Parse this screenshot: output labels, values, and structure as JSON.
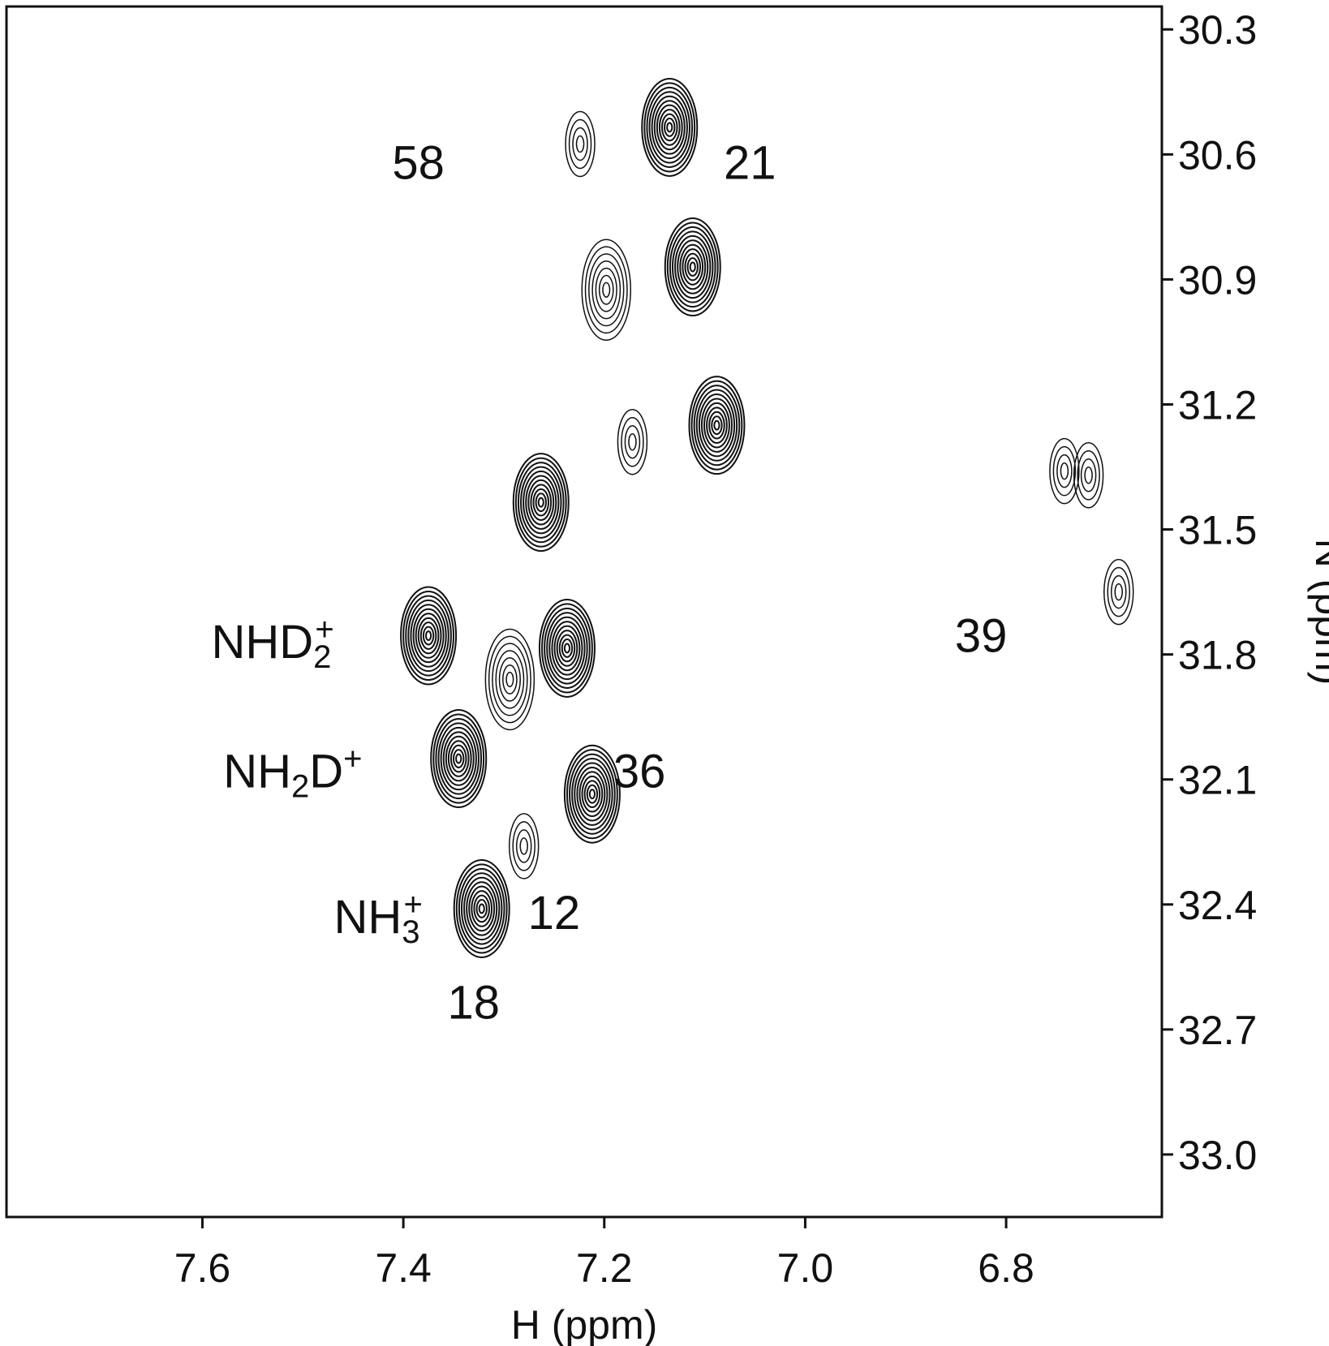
{
  "chart_data": {
    "type": "scatter",
    "subtype": "2D NMR contour spectrum (1H-15N HSQC)",
    "title": "",
    "xlabel": "H (ppm)",
    "ylabel": "N (ppm)",
    "x_axis": {
      "reversed": true,
      "ticks": [
        "7.6",
        "7.4",
        "7.2",
        "7.0",
        "6.8"
      ]
    },
    "y_axis": {
      "position": "right",
      "reversed": true,
      "ticks": [
        "30.3",
        "30.6",
        "30.9",
        "31.2",
        "31.5",
        "31.8",
        "32.1",
        "32.4",
        "32.7",
        "33.0"
      ]
    },
    "xlim": [
      7.795,
      6.645
    ],
    "ylim": [
      30.245,
      33.15
    ],
    "grid": false,
    "legend": "none",
    "contour_color": "#111111",
    "peaks": [
      {
        "x": 7.224,
        "y": 30.575,
        "intensity": "weak"
      },
      {
        "x": 7.135,
        "y": 30.535,
        "intensity": "strong"
      },
      {
        "x": 7.198,
        "y": 30.925,
        "intensity": "medium"
      },
      {
        "x": 7.112,
        "y": 30.87,
        "intensity": "strong"
      },
      {
        "x": 7.172,
        "y": 31.29,
        "intensity": "weak"
      },
      {
        "x": 7.088,
        "y": 31.25,
        "intensity": "strong"
      },
      {
        "x": 7.263,
        "y": 31.435,
        "intensity": "strong"
      },
      {
        "x": 6.718,
        "y": 31.37,
        "intensity": "weak"
      },
      {
        "x": 6.742,
        "y": 31.36,
        "intensity": "weak"
      },
      {
        "x": 6.688,
        "y": 31.65,
        "intensity": "weak"
      },
      {
        "x": 7.375,
        "y": 31.755,
        "intensity": "strong"
      },
      {
        "x": 7.237,
        "y": 31.785,
        "intensity": "strong"
      },
      {
        "x": 7.294,
        "y": 31.86,
        "intensity": "medium"
      },
      {
        "x": 7.345,
        "y": 32.05,
        "intensity": "strong"
      },
      {
        "x": 7.212,
        "y": 32.135,
        "intensity": "strong"
      },
      {
        "x": 7.28,
        "y": 32.26,
        "intensity": "weak"
      },
      {
        "x": 7.322,
        "y": 32.41,
        "intensity": "strong"
      }
    ],
    "annotations": [
      {
        "text": "58",
        "x": 7.385,
        "y": 30.62
      },
      {
        "text": "21",
        "x": 7.055,
        "y": 30.62
      },
      {
        "text": "39",
        "x": 6.825,
        "y": 31.755
      },
      {
        "text": "36",
        "x": 7.165,
        "y": 32.08
      },
      {
        "text": "12",
        "x": 7.25,
        "y": 32.42
      },
      {
        "text": "18",
        "x": 7.33,
        "y": 32.635
      }
    ],
    "species_labels": [
      {
        "base": "NHD",
        "sub": "2",
        "sup": "+",
        "x": 7.53,
        "y": 31.77
      },
      {
        "base": "NH",
        "sub": "2",
        "mid": "D",
        "sup": "+",
        "x": 7.51,
        "y": 32.08
      },
      {
        "base": "NH",
        "sub": "3",
        "sup": "+",
        "x": 7.425,
        "y": 32.43
      }
    ]
  }
}
